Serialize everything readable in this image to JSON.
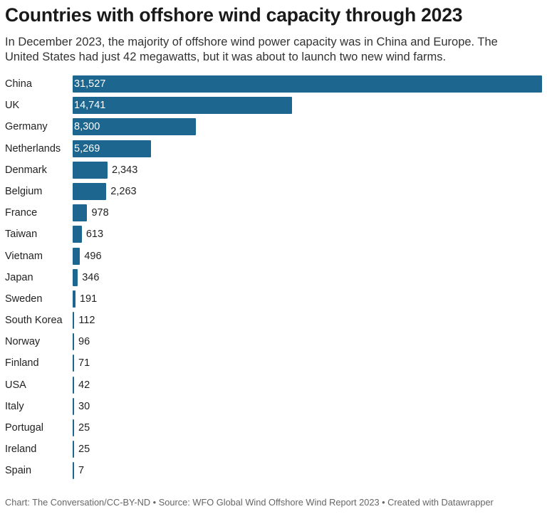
{
  "header": {
    "title": "Countries with offshore wind capacity through 2023",
    "subtitle": "In December 2023, the majority of offshore wind power capacity was in China and Europe. The United States had just 42 megawatts, but it was about to launch two new wind farms."
  },
  "footer": {
    "credit": "Chart: The Conversation/CC-BY-ND • Source: WFO Global Wind Offshore Wind Report 2023 • Created with Datawrapper"
  },
  "colors": {
    "bar": "#1c6690",
    "inside_label": "#ffffff",
    "outside_label": "#222222"
  },
  "chart_data": {
    "type": "bar",
    "orientation": "horizontal",
    "title": "Countries with offshore wind capacity through 2023",
    "xlabel": "",
    "ylabel": "",
    "xlim": [
      0,
      31527
    ],
    "categories": [
      "China",
      "UK",
      "Germany",
      "Netherlands",
      "Denmark",
      "Belgium",
      "France",
      "Taiwan",
      "Vietnam",
      "Japan",
      "Sweden",
      "South Korea",
      "Norway",
      "Finland",
      "USA",
      "Italy",
      "Portugal",
      "Ireland",
      "Spain"
    ],
    "values": [
      31527,
      14741,
      8300,
      5269,
      2343,
      2263,
      978,
      613,
      496,
      346,
      191,
      112,
      96,
      71,
      42,
      30,
      25,
      25,
      7
    ],
    "value_labels": [
      "31,527",
      "14,741",
      "8,300",
      "5,269",
      "2,343",
      "2,263",
      "978",
      "613",
      "496",
      "346",
      "191",
      "112",
      "96",
      "71",
      "42",
      "30",
      "25",
      "25",
      "7"
    ]
  }
}
